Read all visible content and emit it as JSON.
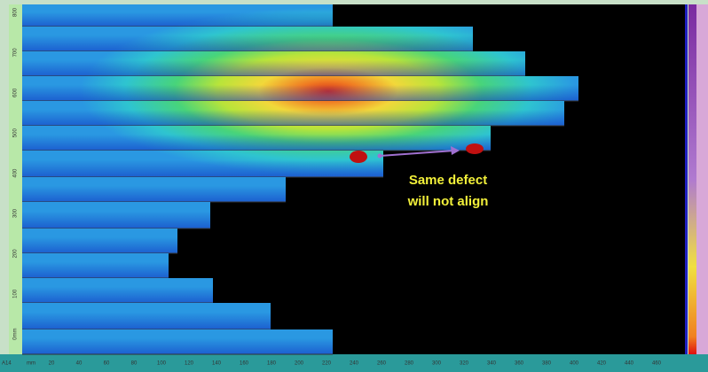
{
  "annotation": {
    "lines": [
      "Same defect",
      "will not align"
    ]
  },
  "left_ruler": {
    "labels": [
      "800",
      "700",
      "600",
      "500",
      "400",
      "300",
      "200",
      "100",
      "0mm"
    ]
  },
  "bottom_ruler": {
    "corner": "A14",
    "unit": "mm",
    "labels": [
      "20",
      "40",
      "60",
      "80",
      "100",
      "120",
      "140",
      "160",
      "180",
      "200",
      "220",
      "240",
      "260",
      "280",
      "300",
      "320",
      "340",
      "360",
      "380",
      "400",
      "420",
      "440",
      "460"
    ]
  }
}
